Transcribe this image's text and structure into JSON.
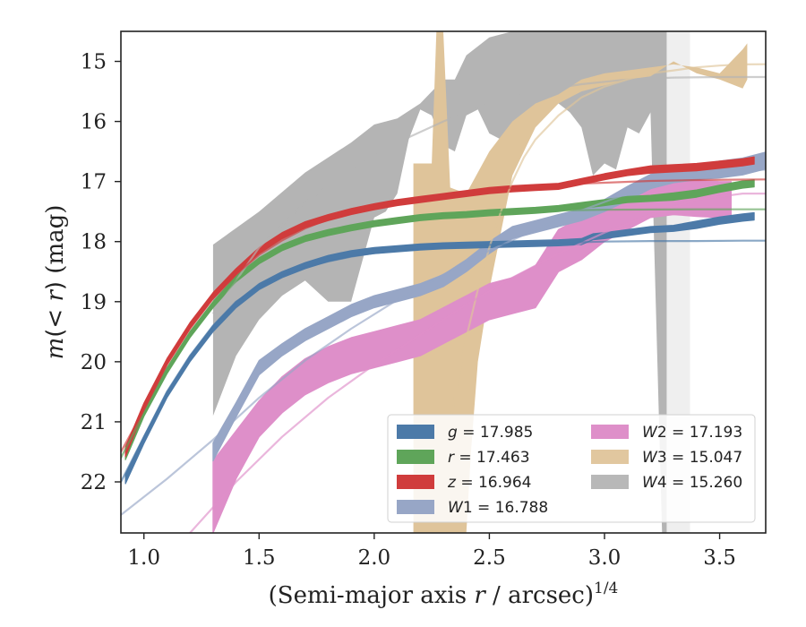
{
  "chart_data": {
    "type": "line",
    "xlabel_main": "(Semi-major axis ",
    "xlabel_r": "r",
    "xlabel_unit": " / arcsec)",
    "xlabel_exp": "1/4",
    "ylabel_m": "m",
    "ylabel_lt": "(< ",
    "ylabel_r": "r",
    "ylabel_close": ")",
    "ylabel_unit": " (mag)",
    "xlim": [
      0.9,
      3.7
    ],
    "ylim": [
      22.85,
      14.5
    ],
    "y_inverted": true,
    "xticks": [
      1.0,
      1.5,
      2.0,
      2.5,
      3.0,
      3.5
    ],
    "xtick_labels": [
      "1.0",
      "1.5",
      "2.0",
      "2.5",
      "3.0",
      "3.5"
    ],
    "yticks": [
      15,
      16,
      17,
      18,
      19,
      20,
      21,
      22
    ],
    "ytick_labels": [
      "15",
      "16",
      "17",
      "18",
      "19",
      "20",
      "21",
      "22"
    ],
    "grid": false,
    "legend_position": "lower-right",
    "legend_columns": 2,
    "series": [
      {
        "name": "g",
        "value_text": "17.985",
        "color": "#4c7aa8",
        "band": {
          "x": [
            0.92,
            1.0,
            1.1,
            1.2,
            1.3,
            1.4,
            1.5,
            1.6,
            1.7,
            1.8,
            1.9,
            2.0,
            2.1,
            2.2,
            2.3,
            2.4,
            2.5,
            2.6,
            2.7,
            2.8,
            2.9,
            2.95,
            3.0,
            3.1,
            3.2,
            3.3,
            3.4,
            3.5,
            3.6,
            3.65
          ],
          "y": [
            21.95,
            21.3,
            20.55,
            19.95,
            19.45,
            19.05,
            18.75,
            18.55,
            18.4,
            18.28,
            18.2,
            18.15,
            18.12,
            18.09,
            18.07,
            18.06,
            18.05,
            18.04,
            18.03,
            18.02,
            18.0,
            17.92,
            17.9,
            17.85,
            17.8,
            17.78,
            17.72,
            17.65,
            17.6,
            17.58
          ],
          "width": [
            0.08,
            0.06,
            0.05,
            0.05,
            0.05,
            0.05,
            0.05,
            0.05,
            0.05,
            0.05,
            0.05,
            0.05,
            0.05,
            0.05,
            0.05,
            0.05,
            0.05,
            0.05,
            0.05,
            0.05,
            0.05,
            0.05,
            0.05,
            0.05,
            0.05,
            0.05,
            0.06,
            0.06,
            0.06,
            0.06
          ]
        },
        "model": {
          "x": [
            0.9,
            1.0,
            1.1,
            1.2,
            1.3,
            1.4,
            1.5,
            1.6,
            1.7,
            1.8,
            1.9,
            2.0,
            2.2,
            2.4,
            2.6,
            2.8,
            3.0,
            3.2,
            3.4,
            3.6,
            3.7
          ],
          "y": [
            22.0,
            21.25,
            20.5,
            19.9,
            19.4,
            19.0,
            18.75,
            18.56,
            18.43,
            18.33,
            18.25,
            18.19,
            18.12,
            18.07,
            18.04,
            18.02,
            18.0,
            17.99,
            17.99,
            17.985,
            17.985
          ]
        }
      },
      {
        "name": "r",
        "value_text": "17.463",
        "color": "#5fa55a",
        "band": {
          "x": [
            0.92,
            1.0,
            1.1,
            1.2,
            1.3,
            1.4,
            1.5,
            1.6,
            1.7,
            1.8,
            1.9,
            2.0,
            2.1,
            2.2,
            2.3,
            2.4,
            2.5,
            2.6,
            2.7,
            2.8,
            2.9,
            3.0,
            3.1,
            3.2,
            3.3,
            3.4,
            3.5,
            3.6,
            3.65
          ],
          "y": [
            21.55,
            20.85,
            20.15,
            19.55,
            19.05,
            18.62,
            18.32,
            18.1,
            17.95,
            17.85,
            17.77,
            17.7,
            17.65,
            17.6,
            17.57,
            17.55,
            17.52,
            17.5,
            17.48,
            17.45,
            17.4,
            17.35,
            17.3,
            17.28,
            17.25,
            17.2,
            17.12,
            17.05,
            17.03
          ],
          "width": [
            0.08,
            0.06,
            0.05,
            0.05,
            0.05,
            0.05,
            0.05,
            0.05,
            0.05,
            0.05,
            0.05,
            0.05,
            0.05,
            0.05,
            0.05,
            0.05,
            0.05,
            0.05,
            0.05,
            0.05,
            0.05,
            0.05,
            0.05,
            0.05,
            0.06,
            0.06,
            0.06,
            0.06,
            0.06
          ]
        },
        "model": {
          "x": [
            0.9,
            1.0,
            1.1,
            1.2,
            1.3,
            1.4,
            1.5,
            1.6,
            1.7,
            1.8,
            1.9,
            2.0,
            2.2,
            2.4,
            2.6,
            2.8,
            3.0,
            3.2,
            3.4,
            3.6,
            3.7
          ],
          "y": [
            21.6,
            20.85,
            20.12,
            19.55,
            19.05,
            18.65,
            18.35,
            18.12,
            17.95,
            17.83,
            17.74,
            17.67,
            17.58,
            17.53,
            17.5,
            17.48,
            17.47,
            17.465,
            17.463,
            17.463,
            17.463
          ]
        }
      },
      {
        "name": "z",
        "value_text": "16.964",
        "color": "#d03c3c",
        "band": {
          "x": [
            0.92,
            1.0,
            1.1,
            1.2,
            1.3,
            1.4,
            1.5,
            1.6,
            1.7,
            1.8,
            1.9,
            2.0,
            2.1,
            2.2,
            2.3,
            2.4,
            2.5,
            2.6,
            2.7,
            2.8,
            2.9,
            3.0,
            3.1,
            3.2,
            3.3,
            3.4,
            3.5,
            3.6,
            3.65
          ],
          "y": [
            21.5,
            20.75,
            20.0,
            19.4,
            18.9,
            18.5,
            18.15,
            17.9,
            17.72,
            17.6,
            17.5,
            17.42,
            17.35,
            17.3,
            17.25,
            17.2,
            17.15,
            17.12,
            17.1,
            17.08,
            17.0,
            16.92,
            16.85,
            16.8,
            16.78,
            16.76,
            16.72,
            16.68,
            16.65
          ],
          "width": [
            0.08,
            0.06,
            0.05,
            0.05,
            0.05,
            0.05,
            0.05,
            0.05,
            0.05,
            0.05,
            0.05,
            0.05,
            0.05,
            0.05,
            0.05,
            0.05,
            0.05,
            0.05,
            0.05,
            0.05,
            0.05,
            0.05,
            0.05,
            0.06,
            0.06,
            0.06,
            0.06,
            0.06,
            0.06
          ]
        },
        "model": {
          "x": [
            0.9,
            1.0,
            1.1,
            1.2,
            1.3,
            1.4,
            1.5,
            1.6,
            1.7,
            1.8,
            1.9,
            2.0,
            2.2,
            2.4,
            2.6,
            2.8,
            3.0,
            3.2,
            3.4,
            3.6,
            3.7
          ],
          "y": [
            21.5,
            20.8,
            20.05,
            19.45,
            18.95,
            18.55,
            18.22,
            17.98,
            17.78,
            17.63,
            17.52,
            17.43,
            17.28,
            17.18,
            17.1,
            17.05,
            17.02,
            16.99,
            16.975,
            16.968,
            16.964
          ]
        }
      },
      {
        "name": "W1",
        "value_text": "16.788",
        "color": "#97a6c6",
        "band": {
          "x": [
            1.3,
            1.4,
            1.5,
            1.6,
            1.7,
            1.8,
            1.9,
            2.0,
            2.1,
            2.2,
            2.3,
            2.4,
            2.5,
            2.6,
            2.7,
            2.8,
            2.9,
            3.0,
            3.1,
            3.2,
            3.3,
            3.4,
            3.5,
            3.6,
            3.7
          ],
          "y": [
            21.5,
            20.8,
            20.1,
            19.8,
            19.55,
            19.35,
            19.15,
            19.0,
            18.9,
            18.8,
            18.65,
            18.4,
            18.1,
            17.85,
            17.75,
            17.65,
            17.55,
            17.4,
            17.2,
            17.0,
            16.9,
            16.85,
            16.8,
            16.75,
            16.65
          ],
          "width": [
            0.15,
            0.12,
            0.12,
            0.1,
            0.1,
            0.1,
            0.1,
            0.1,
            0.1,
            0.1,
            0.1,
            0.1,
            0.1,
            0.1,
            0.1,
            0.1,
            0.1,
            0.1,
            0.12,
            0.12,
            0.12,
            0.12,
            0.14,
            0.14,
            0.14
          ]
        },
        "model": {
          "x": [
            0.9,
            1.1,
            1.3,
            1.5,
            1.7,
            1.9,
            2.1,
            2.3,
            2.5,
            2.7,
            2.9,
            3.1,
            3.3,
            3.5,
            3.7
          ],
          "y": [
            22.55,
            21.95,
            21.3,
            20.6,
            19.98,
            19.45,
            18.97,
            18.55,
            18.15,
            17.8,
            17.48,
            17.2,
            16.98,
            16.85,
            16.8
          ]
        }
      },
      {
        "name": "W2",
        "value_text": "17.193",
        "color": "#de8fc9",
        "band": {
          "x": [
            1.3,
            1.4,
            1.5,
            1.6,
            1.7,
            1.8,
            1.9,
            2.0,
            2.1,
            2.2,
            2.3,
            2.4,
            2.5,
            2.6,
            2.7,
            2.8,
            2.9,
            3.0,
            3.1,
            3.2,
            3.3,
            3.4,
            3.5,
            3.55
          ],
          "y": [
            22.25,
            21.55,
            20.95,
            20.55,
            20.25,
            20.05,
            19.9,
            19.8,
            19.7,
            19.6,
            19.4,
            19.2,
            19.0,
            18.9,
            18.75,
            18.15,
            17.95,
            17.7,
            17.5,
            17.3,
            17.25,
            17.28,
            17.3,
            17.3
          ],
          "width": [
            0.6,
            0.4,
            0.3,
            0.3,
            0.3,
            0.3,
            0.3,
            0.3,
            0.3,
            0.3,
            0.3,
            0.3,
            0.3,
            0.3,
            0.35,
            0.35,
            0.35,
            0.3,
            0.3,
            0.3,
            0.3,
            0.3,
            0.3,
            0.3
          ]
        },
        "model": {
          "x": [
            1.2,
            1.4,
            1.6,
            1.8,
            2.0,
            2.2,
            2.4,
            2.6,
            2.8,
            3.0,
            3.2,
            3.4,
            3.6,
            3.7
          ],
          "y": [
            22.85,
            22.0,
            21.25,
            20.6,
            20.05,
            19.55,
            19.05,
            18.6,
            18.2,
            17.85,
            17.55,
            17.3,
            17.2,
            17.2
          ]
        }
      },
      {
        "name": "W3",
        "value_text": "15.047",
        "color": "#dfc49a",
        "band_poly": {
          "upper_x": [
            2.17,
            2.25,
            2.27,
            2.3,
            2.33,
            2.4,
            2.5,
            2.6,
            2.7,
            2.8,
            2.9,
            3.0,
            3.1,
            3.2,
            3.3,
            3.4,
            3.5,
            3.6,
            3.62
          ],
          "upper_y": [
            16.7,
            16.7,
            14.5,
            14.5,
            17.1,
            17.2,
            16.5,
            16.0,
            15.7,
            15.55,
            15.3,
            15.2,
            15.15,
            15.1,
            15.05,
            15.1,
            15.2,
            14.8,
            14.7
          ],
          "lower_x": [
            3.62,
            3.6,
            3.5,
            3.4,
            3.3,
            3.2,
            3.1,
            3.0,
            2.9,
            2.8,
            2.7,
            2.6,
            2.5,
            2.45,
            2.42,
            2.4,
            2.35,
            2.3,
            2.27,
            2.25,
            2.22,
            2.2,
            2.17
          ],
          "lower_y": [
            15.3,
            15.45,
            15.3,
            15.2,
            15.0,
            15.25,
            15.3,
            15.4,
            15.5,
            15.7,
            16.1,
            16.9,
            18.8,
            20.0,
            21.5,
            22.85,
            22.85,
            22.85,
            22.85,
            22.85,
            22.85,
            22.85,
            22.85
          ]
        },
        "model": {
          "x": [
            2.25,
            2.3,
            2.35,
            2.4,
            2.45,
            2.5,
            2.55,
            2.6,
            2.65,
            2.7,
            2.8,
            2.9,
            3.0,
            3.1,
            3.2,
            3.3,
            3.4,
            3.5,
            3.6,
            3.7
          ],
          "y": [
            22.85,
            21.6,
            20.6,
            19.6,
            18.8,
            18.1,
            17.5,
            17.0,
            16.6,
            16.3,
            15.9,
            15.6,
            15.42,
            15.3,
            15.2,
            15.15,
            15.1,
            15.07,
            15.05,
            15.047
          ]
        }
      },
      {
        "name": "W4",
        "value_text": "15.260",
        "color": "#b4b4b4",
        "band_poly": {
          "upper_x": [
            1.3,
            1.5,
            1.7,
            1.9,
            2.0,
            2.1,
            2.2,
            2.3,
            2.35,
            2.4,
            2.5,
            2.6,
            2.7,
            2.8,
            2.9,
            3.0,
            3.1,
            3.2,
            3.25,
            3.37
          ],
          "upper_y": [
            18.05,
            17.5,
            16.85,
            16.35,
            16.05,
            15.95,
            15.7,
            15.3,
            15.3,
            14.9,
            14.6,
            14.5,
            14.5,
            14.5,
            14.5,
            14.5,
            14.5,
            14.5,
            14.5,
            14.5
          ],
          "lower_x": [
            3.37,
            3.3,
            3.27,
            3.25,
            3.2,
            3.15,
            3.1,
            3.05,
            3.0,
            2.95,
            2.9,
            2.85,
            2.8,
            2.7,
            2.6,
            2.5,
            2.45,
            2.4,
            2.35,
            2.3,
            2.25,
            2.2,
            2.15,
            2.1,
            2.05,
            2.0,
            1.95,
            1.9,
            1.85,
            1.8,
            1.7,
            1.6,
            1.5,
            1.4,
            1.3
          ],
          "lower_y": [
            22.85,
            22.85,
            22.85,
            22.85,
            15.85,
            16.2,
            16.1,
            16.8,
            16.7,
            16.9,
            16.1,
            15.85,
            15.7,
            16.0,
            16.4,
            16.2,
            15.8,
            15.9,
            16.5,
            16.4,
            15.9,
            15.8,
            16.3,
            17.2,
            17.5,
            17.6,
            18.3,
            19.0,
            19.0,
            19.0,
            18.65,
            18.9,
            19.3,
            19.9,
            20.9
          ],
          "holes": [
            {
              "x": [
                3.27,
                3.37
              ],
              "color": "#efefef"
            }
          ]
        },
        "model": {
          "x": [
            1.3,
            1.5,
            1.7,
            1.9,
            2.1,
            2.3,
            2.5,
            2.7,
            2.9,
            3.1,
            3.3,
            3.5,
            3.7
          ],
          "y": [
            19.2,
            18.1,
            17.35,
            16.8,
            16.35,
            16.0,
            15.7,
            15.5,
            15.38,
            15.3,
            15.27,
            15.26,
            15.26
          ]
        }
      }
    ]
  }
}
